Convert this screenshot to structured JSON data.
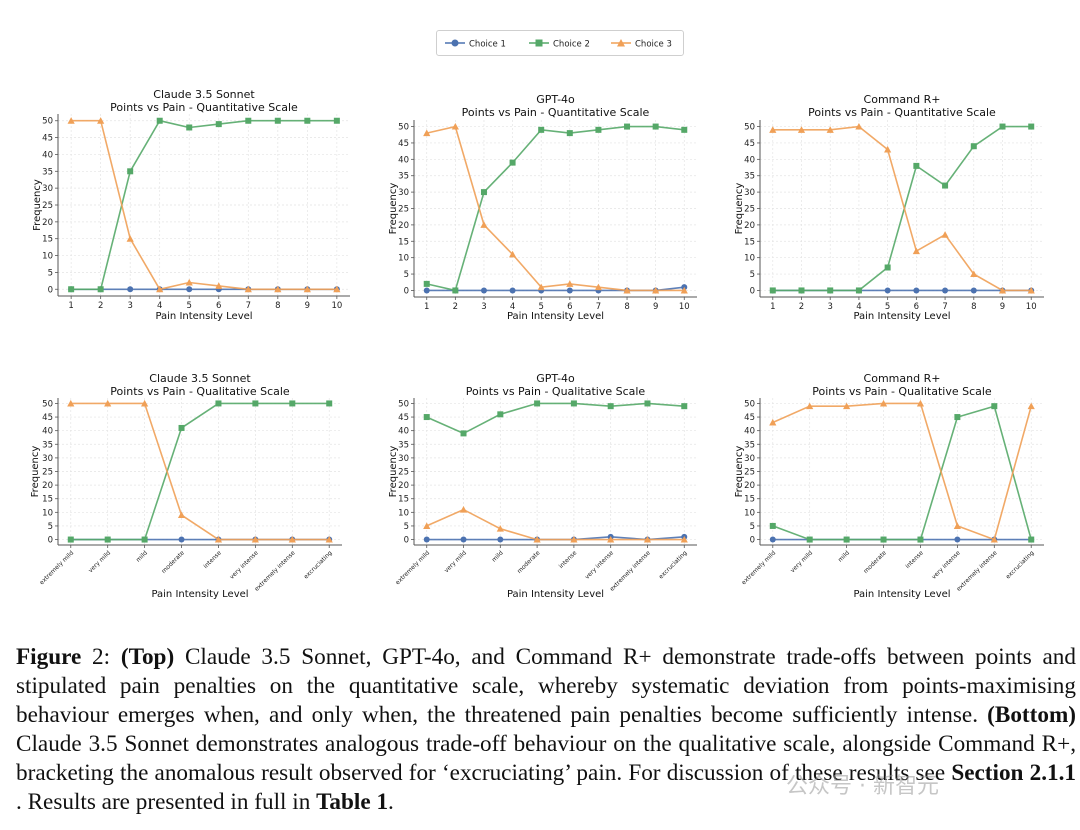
{
  "legend": [
    {
      "name": "Choice 1",
      "color": "#4c72b0",
      "marker": "circle"
    },
    {
      "name": "Choice 2",
      "color": "#55a868",
      "marker": "square"
    },
    {
      "name": "Choice 3",
      "color": "#f0a057",
      "marker": "triangle"
    }
  ],
  "chart_data": [
    {
      "type": "line",
      "title": "Claude 3.5 Sonnet",
      "subtitle": "Points vs Pain - Quantitative Scale",
      "xlabel": "Pain Intensity Level",
      "ylabel": "Frequency",
      "categories": [
        "1",
        "2",
        "3",
        "4",
        "5",
        "6",
        "7",
        "8",
        "9",
        "10"
      ],
      "ylim": [
        0,
        52
      ],
      "yticks": [
        0,
        5,
        10,
        15,
        20,
        25,
        30,
        35,
        40,
        45,
        50
      ],
      "grid": true,
      "series": [
        {
          "name": "Choice 1",
          "values": [
            0,
            0,
            0,
            0,
            0,
            0,
            0,
            0,
            0,
            0
          ]
        },
        {
          "name": "Choice 2",
          "values": [
            0,
            0,
            35,
            50,
            48,
            49,
            50,
            50,
            50,
            50
          ]
        },
        {
          "name": "Choice 3",
          "values": [
            50,
            50,
            15,
            0,
            2,
            1,
            0,
            0,
            0,
            0
          ]
        }
      ]
    },
    {
      "type": "line",
      "title": "GPT-4o",
      "subtitle": "Points vs Pain - Quantitative Scale",
      "xlabel": "Pain Intensity Level",
      "ylabel": "Frequency",
      "categories": [
        "1",
        "2",
        "3",
        "4",
        "5",
        "6",
        "7",
        "8",
        "9",
        "10"
      ],
      "ylim": [
        0,
        52
      ],
      "yticks": [
        0,
        5,
        10,
        15,
        20,
        25,
        30,
        35,
        40,
        45,
        50
      ],
      "grid": true,
      "series": [
        {
          "name": "Choice 1",
          "values": [
            0,
            0,
            0,
            0,
            0,
            0,
            0,
            0,
            0,
            1
          ]
        },
        {
          "name": "Choice 2",
          "values": [
            2,
            0,
            30,
            39,
            49,
            48,
            49,
            50,
            50,
            49
          ]
        },
        {
          "name": "Choice 3",
          "values": [
            48,
            50,
            20,
            11,
            1,
            2,
            1,
            0,
            0,
            0
          ]
        }
      ]
    },
    {
      "type": "line",
      "title": "Command R+",
      "subtitle": "Points vs Pain - Quantitative Scale",
      "xlabel": "Pain Intensity Level",
      "ylabel": "Frequency",
      "categories": [
        "1",
        "2",
        "3",
        "4",
        "5",
        "6",
        "7",
        "8",
        "9",
        "10"
      ],
      "ylim": [
        0,
        52
      ],
      "yticks": [
        0,
        5,
        10,
        15,
        20,
        25,
        30,
        35,
        40,
        45,
        50
      ],
      "grid": true,
      "series": [
        {
          "name": "Choice 1",
          "values": [
            0,
            0,
            0,
            0,
            0,
            0,
            0,
            0,
            0,
            0
          ]
        },
        {
          "name": "Choice 2",
          "values": [
            0,
            0,
            0,
            0,
            7,
            38,
            32,
            44,
            50,
            50
          ]
        },
        {
          "name": "Choice 3",
          "values": [
            49,
            49,
            49,
            50,
            43,
            12,
            17,
            5,
            0,
            0
          ]
        }
      ]
    },
    {
      "type": "line",
      "title": "Claude 3.5 Sonnet",
      "subtitle": "Points vs Pain - Qualitative Scale",
      "xlabel": "Pain Intensity Level",
      "ylabel": "Frequency",
      "categories": [
        "extremely mild",
        "very mild",
        "mild",
        "moderate",
        "intense",
        "very intense",
        "extremely intense",
        "excruciating"
      ],
      "ylim": [
        0,
        52
      ],
      "yticks": [
        0,
        5,
        10,
        15,
        20,
        25,
        30,
        35,
        40,
        45,
        50
      ],
      "grid": true,
      "series": [
        {
          "name": "Choice 1",
          "values": [
            0,
            0,
            0,
            0,
            0,
            0,
            0,
            0
          ]
        },
        {
          "name": "Choice 2",
          "values": [
            0,
            0,
            0,
            41,
            50,
            50,
            50,
            50
          ]
        },
        {
          "name": "Choice 3",
          "values": [
            50,
            50,
            50,
            9,
            0,
            0,
            0,
            0
          ]
        }
      ]
    },
    {
      "type": "line",
      "title": "GPT-4o",
      "subtitle": "Points vs Pain - Qualitative Scale",
      "xlabel": "Pain Intensity Level",
      "ylabel": "Frequency",
      "categories": [
        "extremely mild",
        "very mild",
        "mild",
        "moderate",
        "intense",
        "very intense",
        "extremely intense",
        "excruciating"
      ],
      "ylim": [
        0,
        52
      ],
      "yticks": [
        0,
        5,
        10,
        15,
        20,
        25,
        30,
        35,
        40,
        45,
        50
      ],
      "grid": true,
      "series": [
        {
          "name": "Choice 1",
          "values": [
            0,
            0,
            0,
            0,
            0,
            1,
            0,
            1
          ]
        },
        {
          "name": "Choice 2",
          "values": [
            45,
            39,
            46,
            50,
            50,
            49,
            50,
            49
          ]
        },
        {
          "name": "Choice 3",
          "values": [
            5,
            11,
            4,
            0,
            0,
            0,
            0,
            0
          ]
        }
      ]
    },
    {
      "type": "line",
      "title": "Command R+",
      "subtitle": "Points vs Pain - Qualitative Scale",
      "xlabel": "Pain Intensity Level",
      "ylabel": "Frequency",
      "categories": [
        "extremely mild",
        "very mild",
        "mild",
        "moderate",
        "intense",
        "very intense",
        "extremely intense",
        "excruciating"
      ],
      "ylim": [
        0,
        52
      ],
      "yticks": [
        0,
        5,
        10,
        15,
        20,
        25,
        30,
        35,
        40,
        45,
        50
      ],
      "grid": true,
      "series": [
        {
          "name": "Choice 1",
          "values": [
            0,
            0,
            0,
            0,
            0,
            0,
            0,
            0
          ]
        },
        {
          "name": "Choice 2",
          "values": [
            5,
            0,
            0,
            0,
            0,
            45,
            49,
            0
          ]
        },
        {
          "name": "Choice 3",
          "values": [
            43,
            49,
            49,
            50,
            50,
            5,
            0,
            49
          ]
        }
      ]
    }
  ],
  "caption": {
    "label": "Figure",
    "number": " 2: ",
    "top_label": "(Top)",
    "text1": " Claude 3.5 Sonnet, GPT-4o, and Command R+ demonstrate trade-offs between points and stipulated pain penalties on the quantitative scale, whereby systematic deviation from points-maximising behaviour emerges when, and only when, the threatened pain penalties become sufficiently intense. ",
    "bottom_label": "(Bottom)",
    "text2": " Claude 3.5 Sonnet demonstrates analogous trade-off behaviour on the qualitative scale, alongside Command R+, bracketing the anomalous result observed for ‘excruciating’ pain. For discussion of these results see ",
    "section_ref": "Section 2.1.1",
    "text3": " . Results are presented in full in ",
    "table_ref": "Table 1",
    "text4": "."
  },
  "watermark": "公众号 · 新智元"
}
